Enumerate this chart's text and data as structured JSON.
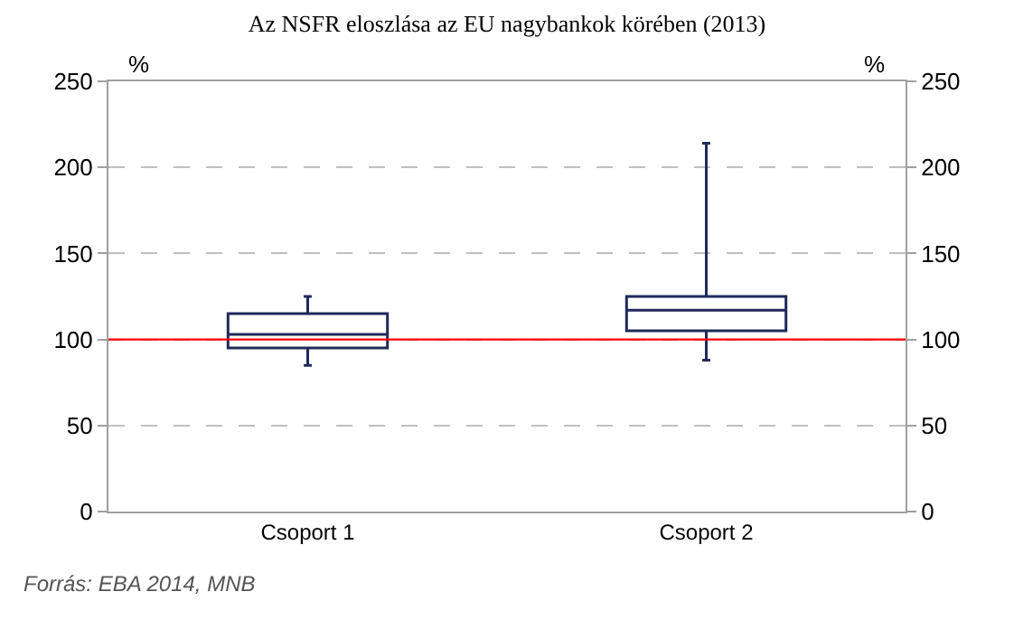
{
  "chart_data": {
    "type": "box",
    "title": "Az NSFR eloszlása az EU nagybankok körében (2013)",
    "categories": [
      "Csoport 1",
      "Csoport 2"
    ],
    "boxes": [
      {
        "low": 85,
        "q1": 95,
        "median": 103,
        "q3": 115,
        "high": 125
      },
      {
        "low": 88,
        "q1": 105,
        "median": 117,
        "q3": 125,
        "high": 214
      }
    ],
    "color": "#1f2a5a",
    "ylabel": "%",
    "y2label": "%",
    "ylim": [
      0,
      250
    ],
    "yticks": [
      0,
      50,
      100,
      150,
      200,
      250
    ],
    "y2lim": [
      0,
      250
    ],
    "y2ticks": [
      0,
      50,
      100,
      150,
      200,
      250
    ],
    "ref_lines": [
      {
        "axis": "y",
        "value": 100,
        "color": "#ff0000"
      }
    ],
    "grid": "y",
    "annotations": [
      "Forrás: EBA 2014, MNB"
    ]
  }
}
